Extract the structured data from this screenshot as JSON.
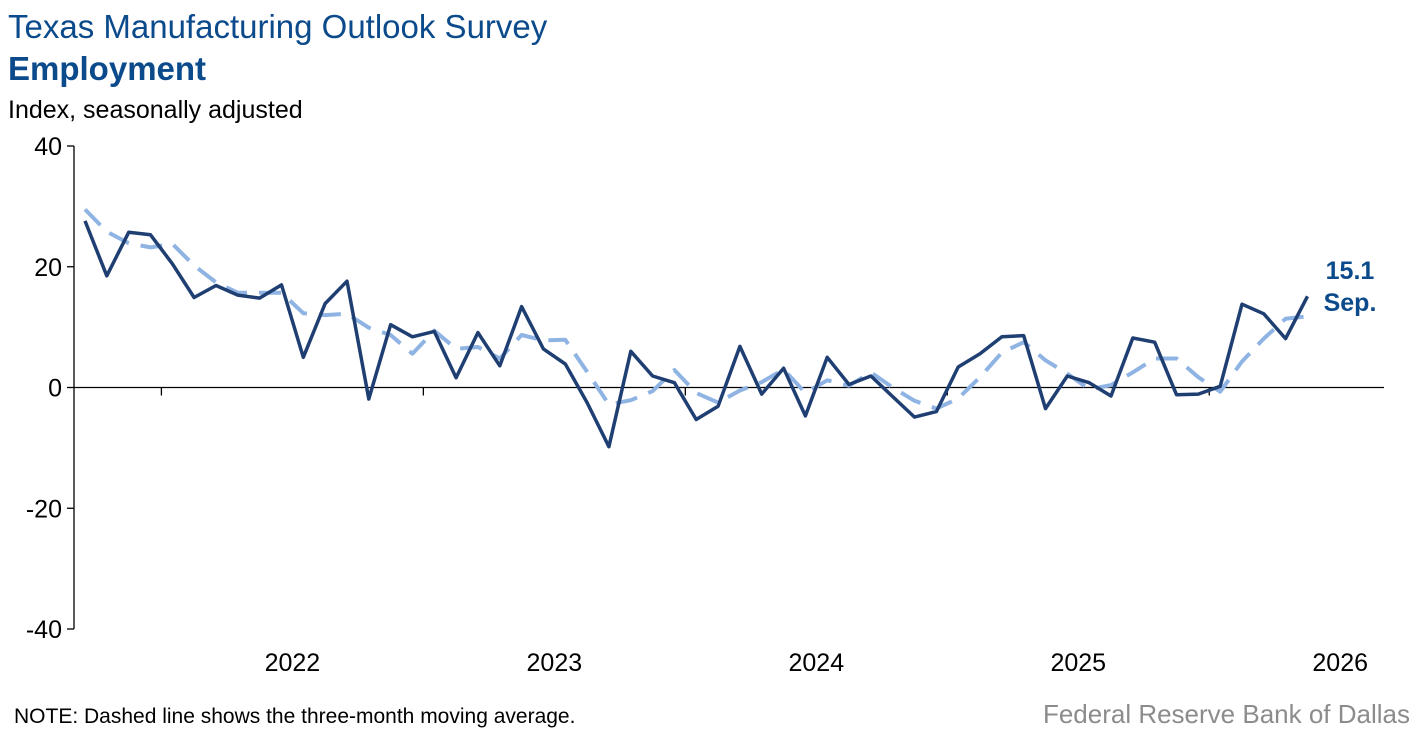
{
  "header": {
    "title": "Texas Manufacturing Outlook Survey",
    "subtitle": "Employment",
    "units": "Index, seasonally adjusted"
  },
  "footer": {
    "note": "NOTE: Dashed line shows the three-month moving average.",
    "source": "Federal Reserve Bank of Dallas"
  },
  "colors": {
    "index_line": "#1f3f73",
    "moving_average": "#8fb4e3",
    "title": "#0b4a8b",
    "source": "#8c8c8c"
  },
  "chart_data": {
    "type": "line",
    "title": "Employment",
    "ylabel": "Index, seasonally adjusted",
    "ylim": [
      -40,
      40
    ],
    "yticks": [
      40,
      20,
      0,
      -20,
      -40
    ],
    "xticks": [
      "2022",
      "2023",
      "2024",
      "2025",
      "2026"
    ],
    "x_start": "2021-09",
    "grid": false,
    "legend": "none",
    "series": [
      {
        "role": "index",
        "style": "solid",
        "values": [
          27.6,
          18.5,
          25.7,
          25.3,
          20.5,
          14.9,
          16.9,
          15.3,
          14.8,
          17.0,
          5.0,
          13.9,
          17.6,
          -1.9,
          10.4,
          8.4,
          9.3,
          1.6,
          9.1,
          3.6,
          13.4,
          6.4,
          3.9,
          -2.5,
          -9.8,
          6.0,
          1.9,
          0.8,
          -5.3,
          -3.1,
          6.8,
          -1.1,
          3.2,
          -4.7,
          5.0,
          0.5,
          1.9,
          -1.5,
          -4.9,
          -4.0,
          3.4,
          5.6,
          8.4,
          8.6,
          -3.5,
          1.9,
          0.8,
          -1.4,
          8.2,
          7.5,
          -1.2,
          -1.1,
          0.2,
          13.8,
          12.2,
          8.1,
          15.1
        ]
      },
      {
        "role": "three-month moving average",
        "style": "dashed",
        "values": [
          29.5,
          25.8,
          23.9,
          23.2,
          23.8,
          20.2,
          17.4,
          15.7,
          15.7,
          15.7,
          12.3,
          12.0,
          12.2,
          9.9,
          8.7,
          5.6,
          9.4,
          6.4,
          6.7,
          4.8,
          8.7,
          7.8,
          7.9,
          2.6,
          -2.8,
          -2.1,
          -0.6,
          2.9,
          -0.9,
          -2.5,
          -0.5,
          0.9,
          3.0,
          -0.9,
          1.2,
          0.3,
          2.5,
          0.0,
          -2.2,
          -3.5,
          -1.8,
          1.7,
          5.8,
          7.5,
          4.5,
          2.3,
          -0.3,
          0.4,
          2.5,
          4.8,
          4.8,
          1.7,
          -0.7,
          4.3,
          8.1,
          11.4,
          11.8
        ]
      }
    ],
    "annotation": {
      "value_label": "15.1",
      "month_label": "Sep."
    }
  }
}
